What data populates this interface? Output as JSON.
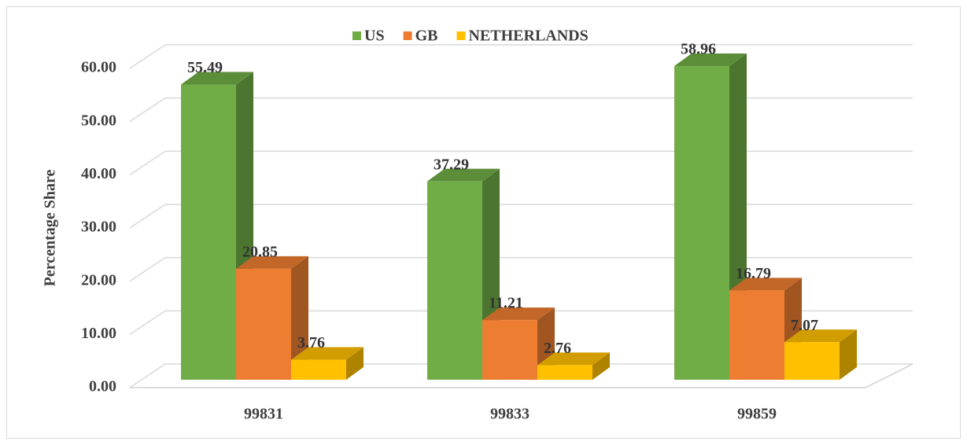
{
  "chart_data": {
    "type": "bar3d",
    "y_label": "Percentage Share",
    "categories": [
      "99831",
      "99833",
      "99859"
    ],
    "series": [
      {
        "name": "US",
        "color": "#70ad47",
        "values": [
          55.49,
          37.29,
          58.96
        ]
      },
      {
        "name": "GB",
        "color": "#ed7d31",
        "values": [
          20.85,
          11.21,
          16.79
        ]
      },
      {
        "name": "NETHERLANDS",
        "color": "#ffc000",
        "values": [
          3.76,
          2.76,
          7.07
        ]
      }
    ],
    "ylim": [
      0,
      60
    ],
    "yticks": [
      {
        "value": 0,
        "label": "0.00"
      },
      {
        "value": 10,
        "label": "10.00"
      },
      {
        "value": 20,
        "label": "20.00"
      },
      {
        "value": 30,
        "label": "30.00"
      },
      {
        "value": 40,
        "label": "40.00"
      },
      {
        "value": 50,
        "label": "50.00"
      },
      {
        "value": 60,
        "label": "60.00"
      }
    ],
    "grid": true,
    "legend": "top"
  }
}
